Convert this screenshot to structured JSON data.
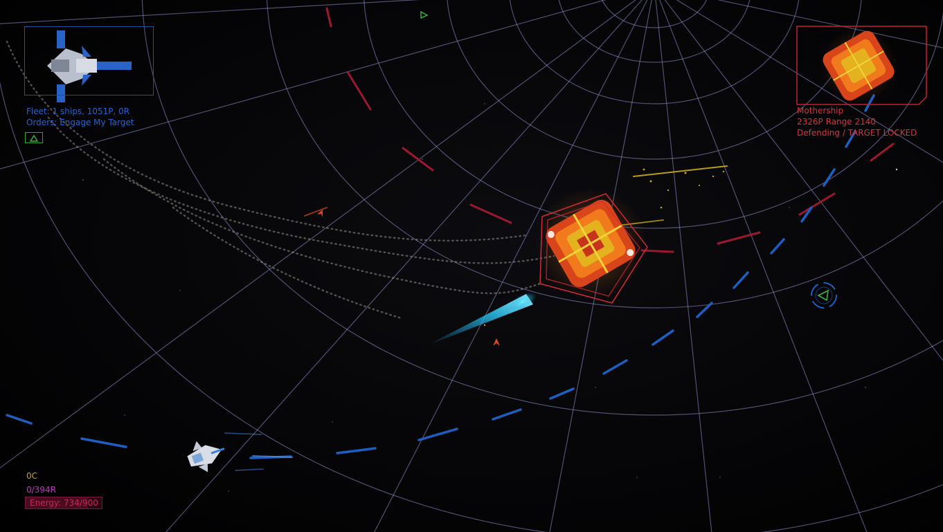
{
  "hud": {
    "fleet": {
      "summary": "Fleet: 1 ships, 1051P, 0R",
      "orders": "Orders: Engage My Target"
    },
    "target": {
      "name": "Mothership",
      "stats": "2326P Range 2140",
      "status": "Defending / TARGET LOCKED"
    },
    "player": {
      "credits": "0C",
      "resources": "0/394R",
      "energy_label": "Energy: 734/900",
      "energy_current": 734,
      "energy_max": 900
    }
  },
  "icons": {
    "orders_button": "triangle-up-icon",
    "waypoint_marker": "triangle-marker-icon",
    "target_indicator": "circle-triangle-indicator-icon"
  },
  "colors": {
    "fleet_text": "#2a63c8",
    "target_text": "#e0303a",
    "credits_text": "#c9a224",
    "resources_text": "#c335c3",
    "energy_text": "#c02a5c",
    "grid": "#8e90c8",
    "orbit_dashes": "#1d5fc0",
    "enemy_dashes": "#9a1830"
  }
}
